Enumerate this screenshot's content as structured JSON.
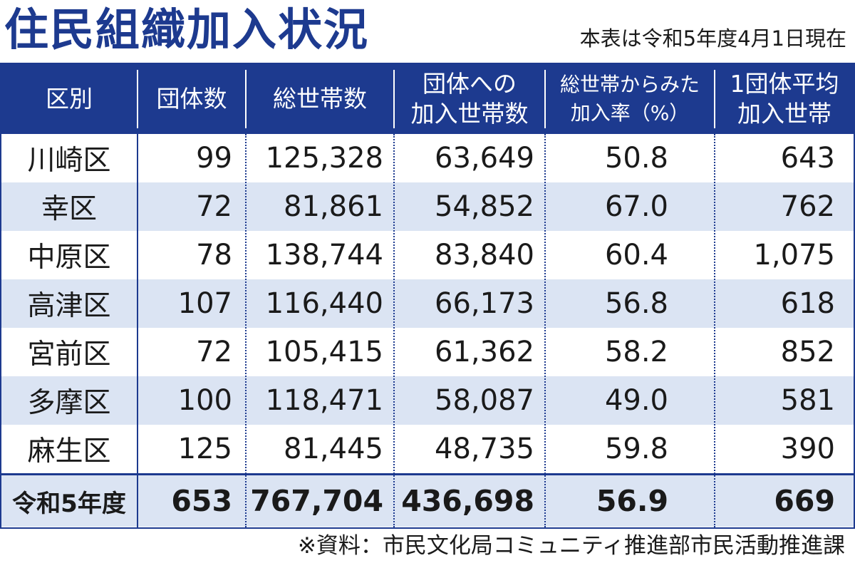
{
  "title": "住民組織加入状況",
  "as_of": "本表は令和5年度4月1日現在",
  "headers": [
    "区別",
    "団体数",
    "総世帯数",
    "団体への\n加入世帯数",
    "総世帯からみた\n加入率（%）",
    "1団体平均\n加入世帯"
  ],
  "rows": [
    [
      "川崎区",
      "99",
      "125,328",
      "63,649",
      "50.8",
      "643"
    ],
    [
      "幸区",
      "72",
      "81,861",
      "54,852",
      "67.0",
      "762"
    ],
    [
      "中原区",
      "78",
      "138,744",
      "83,840",
      "60.4",
      "1,075"
    ],
    [
      "高津区",
      "107",
      "116,440",
      "66,173",
      "56.8",
      "618"
    ],
    [
      "宮前区",
      "72",
      "105,415",
      "61,362",
      "58.2",
      "852"
    ],
    [
      "多摩区",
      "100",
      "118,471",
      "58,087",
      "49.0",
      "581"
    ],
    [
      "麻生区",
      "125",
      "81,445",
      "48,735",
      "59.8",
      "390"
    ]
  ],
  "total": [
    "令和5年度",
    "653",
    "767,704",
    "436,698",
    "56.9",
    "669"
  ],
  "source": "※資料：市民文化局コミュニティ推進部市民活動推進課",
  "colors": {
    "accent": "#1d3a8f",
    "stripe": "#dbe4f3"
  }
}
